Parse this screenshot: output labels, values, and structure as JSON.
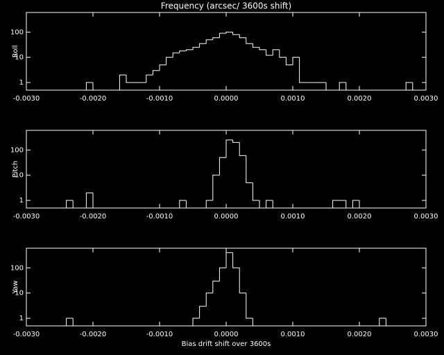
{
  "chart_data": [
    {
      "type": "histogram",
      "title": "Frequency (arcsec/ 3600s shift)",
      "ylabel": "Roll",
      "color": "#ffffff",
      "log_y": true,
      "bins": [
        -0.003,
        -0.0029,
        -0.0028,
        -0.0027,
        -0.0026,
        -0.0025,
        -0.0024,
        -0.0023,
        -0.0022,
        -0.0021,
        -0.002,
        -0.0019,
        -0.0018,
        -0.0017,
        -0.0016,
        -0.0015,
        -0.0014,
        -0.0013,
        -0.0012,
        -0.0011,
        -0.001,
        -0.0009,
        -0.0008,
        -0.0007,
        -0.0006,
        -0.0005,
        -0.0004,
        -0.0003,
        -0.0002,
        -0.0001,
        0,
        0.0001,
        0.0002,
        0.0003,
        0.0004,
        0.0005,
        0.0006,
        0.0007,
        0.0008,
        0.0009,
        0.001,
        0.0011,
        0.0012,
        0.0013,
        0.0014,
        0.0015,
        0.0016,
        0.0017,
        0.0018,
        0.0019,
        0.002,
        0.0021,
        0.0022,
        0.0023,
        0.0024,
        0.0025,
        0.0026,
        0.0027,
        0.0028,
        0.0029,
        0.003
      ],
      "counts": [
        0,
        0,
        0,
        0,
        0,
        0,
        0,
        0,
        0,
        1,
        0,
        0,
        0,
        0,
        2,
        1,
        1,
        1,
        2,
        3,
        5,
        10,
        15,
        18,
        20,
        25,
        35,
        50,
        60,
        90,
        100,
        80,
        60,
        35,
        25,
        20,
        12,
        20,
        10,
        5,
        10,
        1,
        1,
        1,
        1,
        0,
        0,
        1,
        0,
        0,
        0,
        0,
        0,
        0,
        0,
        0,
        0,
        1,
        0,
        0
      ],
      "xlim": [
        -0.003,
        0.003
      ],
      "ylim": [
        0.5,
        600
      ],
      "xticks": [
        {
          "value": -0.003,
          "label": "-0.0030"
        },
        {
          "value": -0.002,
          "label": "-0.0020"
        },
        {
          "value": -0.001,
          "label": "-0.0010"
        },
        {
          "value": 0,
          "label": "0.0000"
        },
        {
          "value": 0.001,
          "label": "0.0010"
        },
        {
          "value": 0.002,
          "label": "0.0020"
        },
        {
          "value": 0.003,
          "label": "0.0030"
        }
      ],
      "yticks": [
        1,
        10,
        100
      ]
    },
    {
      "type": "histogram",
      "ylabel": "Pitch",
      "color": "#ffffff",
      "log_y": true,
      "bins": [
        -0.003,
        -0.0029,
        -0.0028,
        -0.0027,
        -0.0026,
        -0.0025,
        -0.0024,
        -0.0023,
        -0.0022,
        -0.0021,
        -0.002,
        -0.0019,
        -0.0018,
        -0.0017,
        -0.0016,
        -0.0015,
        -0.0014,
        -0.0013,
        -0.0012,
        -0.0011,
        -0.001,
        -0.0009,
        -0.0008,
        -0.0007,
        -0.0006,
        -0.0005,
        -0.0004,
        -0.0003,
        -0.0002,
        -0.0001,
        0,
        0.0001,
        0.0002,
        0.0003,
        0.0004,
        0.0005,
        0.0006,
        0.0007,
        0.0008,
        0.0009,
        0.001,
        0.0011,
        0.0012,
        0.0013,
        0.0014,
        0.0015,
        0.0016,
        0.0017,
        0.0018,
        0.0019,
        0.002,
        0.0021,
        0.0022,
        0.0023,
        0.0024,
        0.0025,
        0.0026,
        0.0027,
        0.0028,
        0.0029,
        0.003
      ],
      "counts": [
        0,
        0,
        0,
        0,
        0,
        0,
        1,
        0,
        0,
        2,
        0,
        0,
        0,
        0,
        0,
        0,
        0,
        0,
        0,
        0,
        0,
        0,
        0,
        1,
        0,
        0,
        0,
        1,
        10,
        50,
        250,
        200,
        60,
        5,
        1,
        0,
        1,
        0,
        0,
        0,
        0,
        0,
        0,
        0,
        0,
        0,
        1,
        1,
        0,
        1,
        0,
        0,
        0,
        0,
        0,
        0,
        0,
        0,
        0,
        0
      ],
      "xlim": [
        -0.003,
        0.003
      ],
      "ylim": [
        0.5,
        600
      ],
      "xticks": [
        {
          "value": -0.003,
          "label": "-0.0030"
        },
        {
          "value": -0.002,
          "label": "-0.0020"
        },
        {
          "value": -0.001,
          "label": "-0.0010"
        },
        {
          "value": 0,
          "label": "0.0000"
        },
        {
          "value": 0.001,
          "label": "0.0010"
        },
        {
          "value": 0.002,
          "label": "0.0020"
        },
        {
          "value": 0.003,
          "label": "0.0030"
        }
      ],
      "yticks": [
        1,
        10,
        100
      ]
    },
    {
      "type": "histogram",
      "ylabel": "Yaw",
      "xlabel": "Bias drift shift over 3600s",
      "color": "#ffffff",
      "log_y": true,
      "bins": [
        -0.003,
        -0.0029,
        -0.0028,
        -0.0027,
        -0.0026,
        -0.0025,
        -0.0024,
        -0.0023,
        -0.0022,
        -0.0021,
        -0.002,
        -0.0019,
        -0.0018,
        -0.0017,
        -0.0016,
        -0.0015,
        -0.0014,
        -0.0013,
        -0.0012,
        -0.0011,
        -0.001,
        -0.0009,
        -0.0008,
        -0.0007,
        -0.0006,
        -0.0005,
        -0.0004,
        -0.0003,
        -0.0002,
        -0.0001,
        0,
        0.0001,
        0.0002,
        0.0003,
        0.0004,
        0.0005,
        0.0006,
        0.0007,
        0.0008,
        0.0009,
        0.001,
        0.0011,
        0.0012,
        0.0013,
        0.0014,
        0.0015,
        0.0016,
        0.0017,
        0.0018,
        0.0019,
        0.002,
        0.0021,
        0.0022,
        0.0023,
        0.0024,
        0.0025,
        0.0026,
        0.0027,
        0.0028,
        0.0029,
        0.003
      ],
      "counts": [
        0,
        0,
        0,
        0,
        0,
        0,
        1,
        0,
        0,
        0,
        0,
        0,
        0,
        0,
        0,
        0,
        0,
        0,
        0,
        0,
        0,
        0,
        0,
        0,
        0,
        1,
        3,
        10,
        30,
        100,
        400,
        100,
        10,
        1,
        0,
        0,
        0,
        0,
        0,
        0,
        0,
        0,
        0,
        0,
        0,
        0,
        0,
        0,
        0,
        0,
        0,
        0,
        0,
        1,
        0,
        0,
        0,
        0,
        0,
        0
      ],
      "xlim": [
        -0.003,
        0.003
      ],
      "ylim": [
        0.5,
        600
      ],
      "xticks": [
        {
          "value": -0.003,
          "label": "-0.0030"
        },
        {
          "value": -0.002,
          "label": "-0.0020"
        },
        {
          "value": -0.001,
          "label": "-0.0010"
        },
        {
          "value": 0,
          "label": "0.0000"
        },
        {
          "value": 0.001,
          "label": "0.0010"
        },
        {
          "value": 0.002,
          "label": "0.0020"
        },
        {
          "value": 0.003,
          "label": "0.0030"
        }
      ],
      "yticks": [
        1,
        10,
        100
      ]
    }
  ]
}
